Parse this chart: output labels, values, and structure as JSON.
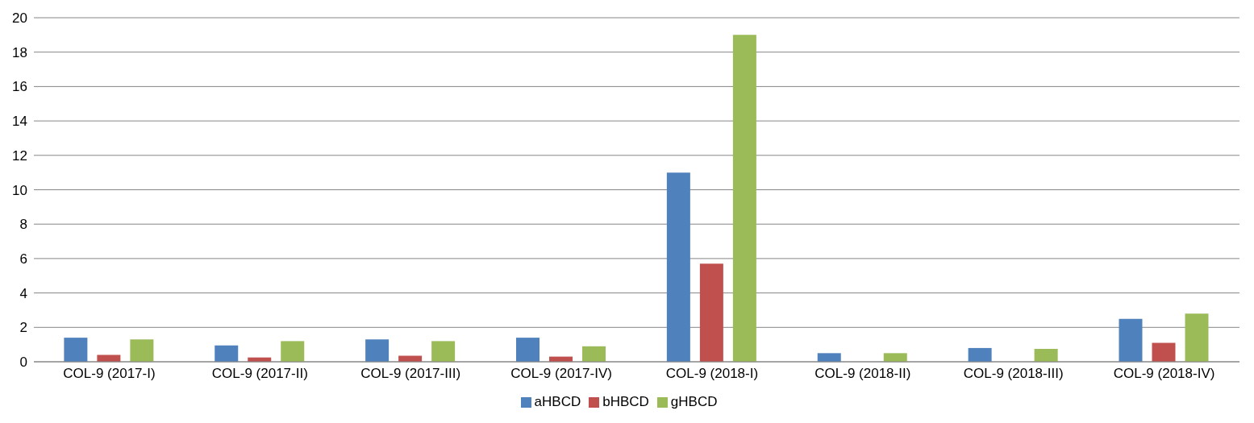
{
  "chart_data": {
    "type": "bar",
    "categories": [
      "COL-9 (2017-I)",
      "COL-9 (2017-II)",
      "COL-9 (2017-III)",
      "COL-9 (2017-IV)",
      "COL-9 (2018-I)",
      "COL-9 (2018-II)",
      "COL-9 (2018-III)",
      "COL-9 (2018-IV)"
    ],
    "series": [
      {
        "name": "aHBCD",
        "color": "#4f81bd",
        "values": [
          1.4,
          0.95,
          1.3,
          1.4,
          11,
          0.5,
          0.8,
          2.5
        ]
      },
      {
        "name": "bHBCD",
        "color": "#c0504d",
        "values": [
          0.4,
          0.25,
          0.35,
          0.3,
          5.7,
          0,
          0,
          1.1
        ]
      },
      {
        "name": "gHBCD",
        "color": "#9bbb59",
        "values": [
          1.3,
          1.2,
          1.2,
          0.9,
          19,
          0.5,
          0.75,
          2.8
        ]
      }
    ],
    "ylim": [
      0,
      20
    ],
    "yticks": [
      0,
      2,
      4,
      6,
      8,
      10,
      12,
      14,
      16,
      18,
      20
    ],
    "grid": "y",
    "legend": "bottom"
  }
}
